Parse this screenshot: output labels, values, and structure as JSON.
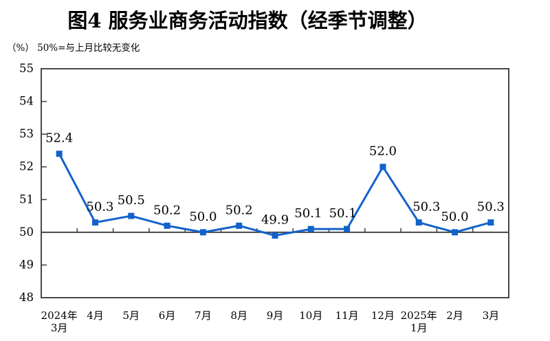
{
  "chart_data": {
    "type": "line",
    "title": "图4 服务业商务活动指数（经季节调整）",
    "note": "（%） 50%=与上月比较无变化",
    "categories": [
      "2024年3月",
      "4月",
      "5月",
      "6月",
      "7月",
      "8月",
      "9月",
      "10月",
      "11月",
      "12月",
      "2025年1月",
      "2月",
      "3月"
    ],
    "category_lines": [
      [
        "2024年",
        "3月"
      ],
      [
        "4月"
      ],
      [
        "5月"
      ],
      [
        "6月"
      ],
      [
        "7月"
      ],
      [
        "8月"
      ],
      [
        "9月"
      ],
      [
        "10月"
      ],
      [
        "11月"
      ],
      [
        "12月"
      ],
      [
        "2025年",
        "1月"
      ],
      [
        "2月"
      ],
      [
        "3月"
      ]
    ],
    "values": [
      52.4,
      50.3,
      50.5,
      50.2,
      50.0,
      50.2,
      49.9,
      50.1,
      50.1,
      52.0,
      50.3,
      50.0,
      50.3
    ],
    "ylim": [
      48,
      55
    ],
    "yticks": [
      48,
      49,
      50,
      51,
      52,
      53,
      54,
      55
    ],
    "reference_line": 50,
    "grid": false,
    "legend": "none",
    "marker": "square",
    "label_dx": [
      0,
      7,
      0,
      0,
      0,
      0,
      0,
      -4,
      -6,
      0,
      11,
      0,
      0
    ],
    "colors": {
      "line": "#1262CC",
      "marker": "#1262CC",
      "axis": "#474747",
      "text": "#000000",
      "background": "#FFFFFF"
    }
  }
}
